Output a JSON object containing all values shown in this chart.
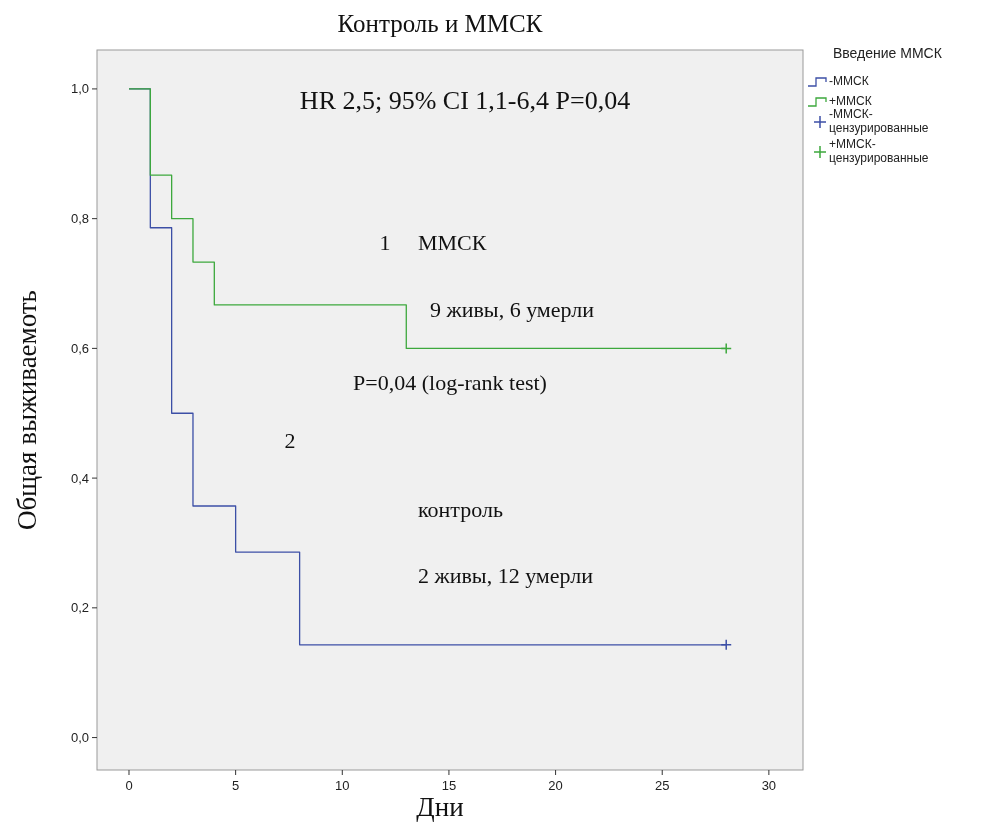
{
  "chart_data": {
    "type": "step",
    "title": "Контроль и ММСК",
    "xlabel": "Дни",
    "ylabel": "Общая выживаемоть",
    "legend_title": "Введение ММСК",
    "legend": "right",
    "xlim": [
      -1.5,
      31.6
    ],
    "ylim": [
      -0.05,
      1.06
    ],
    "xticks": [
      0,
      5,
      10,
      15,
      20,
      25,
      30
    ],
    "yticks": [
      {
        "value": 0,
        "label": "0,0"
      },
      {
        "value": 0.2,
        "label": "0,2"
      },
      {
        "value": 0.4,
        "label": "0,4"
      },
      {
        "value": 0.6,
        "label": "0,6"
      },
      {
        "value": 0.8,
        "label": "0,8"
      },
      {
        "value": 1,
        "label": "1,0"
      }
    ],
    "series": [
      {
        "name": "-ММСК",
        "color": "#3c4fa6",
        "x": [
          0,
          1,
          2,
          3,
          5,
          8,
          28
        ],
        "values": [
          1,
          0.786,
          0.5,
          0.357,
          0.286,
          0.143,
          0.143
        ]
      },
      {
        "name": "+ММСК",
        "color": "#3da83d",
        "x": [
          0,
          1,
          2,
          3,
          4,
          13,
          28
        ],
        "values": [
          1,
          0.867,
          0.8,
          0.733,
          0.667,
          0.6,
          0.6
        ]
      },
      {
        "name": "-ММСК-цензурированные",
        "type": "scatter",
        "marker": "cross",
        "color": "#3c4fa6",
        "x": [
          28
        ],
        "values": [
          0.143
        ]
      },
      {
        "name": "+ММСК-цензурированные",
        "type": "scatter",
        "marker": "cross",
        "color": "#3da83d",
        "x": [
          28
        ],
        "values": [
          0.6
        ]
      }
    ],
    "annotations": [
      "HR 2,5; 95% CI 1,1-6,4 P=0,04",
      "1",
      "ММСК",
      "9 живы, 6 умерли",
      "P=0,04 (log-rank test)",
      "2",
      "контроль",
      "2 живы, 12 умерли"
    ]
  }
}
